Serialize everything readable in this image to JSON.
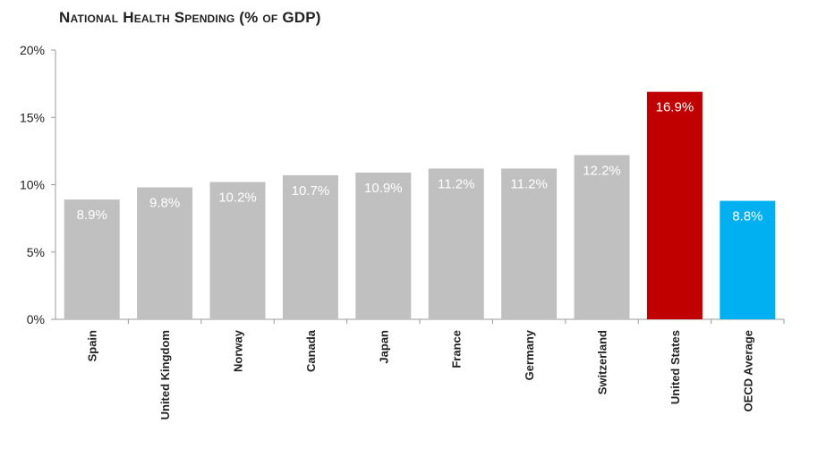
{
  "chart_data": {
    "type": "bar",
    "title": "National Health Spending (% of GDP)",
    "categories": [
      "Spain",
      "United Kingdom",
      "Norway",
      "Canada",
      "Japan",
      "France",
      "Germany",
      "Switzerland",
      "United States",
      "OECD Average"
    ],
    "values": [
      8.9,
      9.8,
      10.2,
      10.7,
      10.9,
      11.2,
      11.2,
      12.2,
      16.9,
      8.8
    ],
    "data_labels": [
      "8.9%",
      "9.8%",
      "10.2%",
      "10.7%",
      "10.9%",
      "11.2%",
      "11.2%",
      "12.2%",
      "16.9%",
      "8.8%"
    ],
    "bar_colors": [
      "#c0c0c0",
      "#c0c0c0",
      "#c0c0c0",
      "#c0c0c0",
      "#c0c0c0",
      "#c0c0c0",
      "#c0c0c0",
      "#c0c0c0",
      "#c00000",
      "#00b0f0"
    ],
    "yticks": [
      0,
      5,
      10,
      15,
      20
    ],
    "ytick_labels": [
      "0%",
      "5%",
      "10%",
      "15%",
      "20%"
    ],
    "ylim": [
      0,
      20
    ],
    "xlabel": "",
    "ylabel": "",
    "grid": false,
    "legend": "none"
  }
}
